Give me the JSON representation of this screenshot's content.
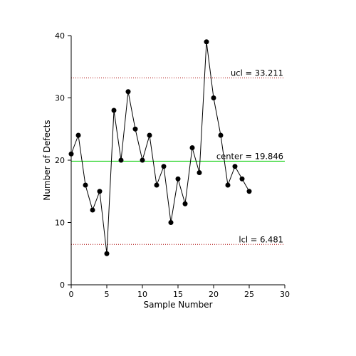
{
  "chart_data": {
    "type": "line",
    "title": "",
    "xlabel": "Sample Number",
    "ylabel": "Number of Defects",
    "xlim": [
      0,
      30
    ],
    "ylim": [
      0,
      40
    ],
    "xticks": [
      0,
      5,
      10,
      15,
      20,
      25,
      30
    ],
    "yticks": [
      0,
      10,
      20,
      30,
      40
    ],
    "grid": false,
    "series": [
      {
        "x": [
          0,
          1,
          2,
          3,
          4,
          5,
          6,
          7,
          8,
          9,
          10,
          11,
          12,
          13,
          14,
          15,
          16,
          17,
          18,
          19,
          20,
          21,
          22,
          23,
          24,
          25
        ],
        "y": [
          21,
          24,
          16,
          12,
          15,
          5,
          28,
          20,
          31,
          25,
          20,
          24,
          16,
          19,
          10,
          17,
          13,
          22,
          18,
          39,
          30,
          24,
          16,
          19,
          17,
          15
        ],
        "color": "#000000"
      }
    ],
    "reference_lines": [
      {
        "key": "ucl",
        "label": "ucl = 33.211",
        "value": 33.211,
        "color": "#aa0000",
        "style": "dotted"
      },
      {
        "key": "center",
        "label": "center = 19.846",
        "value": 19.846,
        "color": "#00cc00",
        "style": "solid"
      },
      {
        "key": "lcl",
        "label": "lcl = 6.481",
        "value": 6.481,
        "color": "#aa0000",
        "style": "dotted"
      }
    ]
  }
}
